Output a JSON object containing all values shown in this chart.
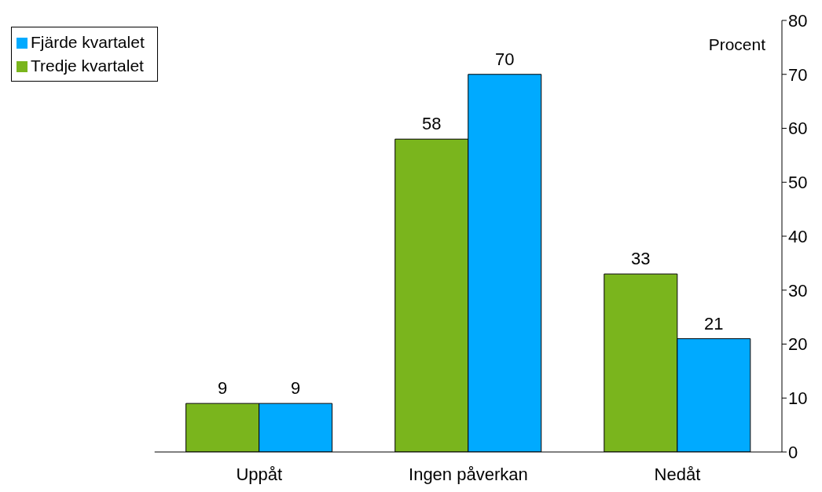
{
  "chart_data": {
    "type": "bar",
    "ylabel": "Procent",
    "categories": [
      "Uppåt",
      "Ingen påverkan",
      "Nedåt"
    ],
    "series": [
      {
        "name": "Tredje kvartalet",
        "color": "#7ab51d",
        "values": [
          9,
          58,
          33
        ]
      },
      {
        "name": "Fjärde kvartalet",
        "color": "#00aaff",
        "values": [
          9,
          70,
          21
        ]
      }
    ],
    "ylim": [
      0,
      80
    ],
    "yticks": [
      0,
      10,
      20,
      30,
      40,
      50,
      60,
      70,
      80
    ],
    "data_labels": true,
    "legend": "top left",
    "grid": false
  }
}
